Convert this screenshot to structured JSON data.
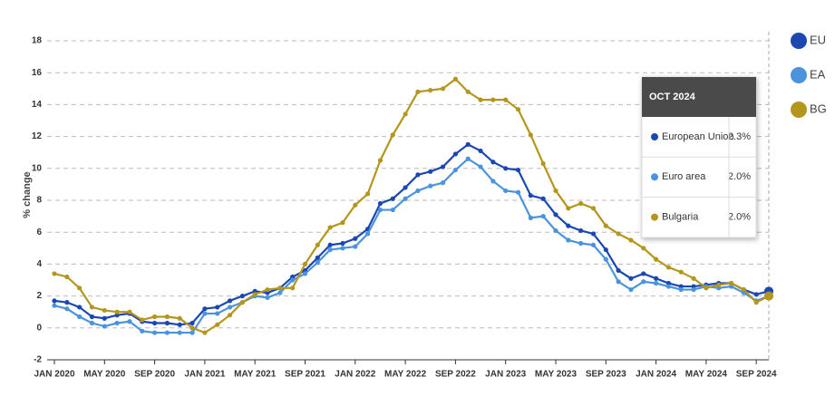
{
  "chart_data": {
    "type": "line",
    "y_axis_label": "% change",
    "categories": [
      "JAN 2020",
      null,
      null,
      null,
      "MAY 2020",
      null,
      null,
      null,
      "SEP 2020",
      null,
      null,
      null,
      "JAN 2021",
      null,
      null,
      null,
      "MAY 2021",
      null,
      null,
      null,
      "SEP 2021",
      null,
      null,
      null,
      "JAN 2022",
      null,
      null,
      null,
      "MAY 2022",
      null,
      null,
      null,
      "SEP 2022",
      null,
      null,
      null,
      "JAN 2023",
      null,
      null,
      null,
      "MAY 2023",
      null,
      null,
      null,
      "SEP 2023",
      null,
      null,
      null,
      "JAN 2024",
      null,
      null,
      null,
      "MAY 2024",
      null,
      null,
      null,
      "SEP 2024",
      null
    ],
    "ylim": [
      -2,
      18
    ],
    "yticks": [
      -2,
      0,
      2,
      4,
      6,
      8,
      10,
      12,
      14,
      16,
      18
    ],
    "grid": true,
    "legend": "right",
    "series": [
      {
        "name": "EU",
        "color": "#1b47b3",
        "values": [
          1.7,
          1.6,
          1.3,
          0.7,
          0.6,
          0.8,
          0.9,
          0.4,
          0.3,
          0.3,
          0.2,
          0.3,
          1.2,
          1.3,
          1.7,
          2.0,
          2.3,
          2.2,
          2.5,
          3.2,
          3.6,
          4.4,
          5.2,
          5.3,
          5.6,
          6.2,
          7.8,
          8.1,
          8.8,
          9.6,
          9.8,
          10.1,
          10.9,
          11.5,
          11.1,
          10.4,
          10.0,
          9.9,
          8.3,
          8.1,
          7.1,
          6.4,
          6.1,
          5.9,
          4.9,
          3.6,
          3.1,
          3.4,
          3.1,
          2.8,
          2.6,
          2.6,
          2.7,
          2.8,
          2.8,
          2.4,
          2.1,
          2.3
        ]
      },
      {
        "name": "EA",
        "color": "#4b93dd",
        "values": [
          1.4,
          1.2,
          0.7,
          0.3,
          0.1,
          0.3,
          0.4,
          -0.2,
          -0.3,
          -0.3,
          -0.3,
          -0.3,
          0.9,
          0.9,
          1.3,
          1.6,
          2.0,
          1.9,
          2.2,
          3.0,
          3.4,
          4.1,
          4.9,
          5.0,
          5.1,
          5.9,
          7.4,
          7.4,
          8.1,
          8.6,
          8.9,
          9.1,
          9.9,
          10.6,
          10.1,
          9.2,
          8.6,
          8.5,
          6.9,
          7.0,
          6.1,
          5.5,
          5.3,
          5.2,
          4.3,
          2.9,
          2.4,
          2.9,
          2.8,
          2.6,
          2.4,
          2.4,
          2.6,
          2.5,
          2.6,
          2.2,
          1.7,
          2.0
        ]
      },
      {
        "name": "BG",
        "color": "#b5961d",
        "values": [
          3.4,
          3.2,
          2.5,
          1.3,
          1.1,
          1.0,
          1.0,
          0.5,
          0.7,
          0.7,
          0.6,
          0.0,
          -0.3,
          0.2,
          0.8,
          1.6,
          2.1,
          2.4,
          2.5,
          2.5,
          4.0,
          5.2,
          6.3,
          6.6,
          7.7,
          8.4,
          10.5,
          12.1,
          13.4,
          14.8,
          14.9,
          15.0,
          15.6,
          14.8,
          14.3,
          14.3,
          14.3,
          13.7,
          12.1,
          10.3,
          8.6,
          7.5,
          7.8,
          7.5,
          6.4,
          5.9,
          5.5,
          5.0,
          4.3,
          3.8,
          3.5,
          3.1,
          2.5,
          2.7,
          2.8,
          2.4,
          1.6,
          2.0
        ]
      }
    ],
    "tooltip": {
      "title": "OCT 2024",
      "rows": [
        {
          "label": "European Union",
          "value": "2.3%"
        },
        {
          "label": "Euro area",
          "value": "2.0%"
        },
        {
          "label": "Bulgaria",
          "value": "2.0%"
        }
      ]
    }
  }
}
